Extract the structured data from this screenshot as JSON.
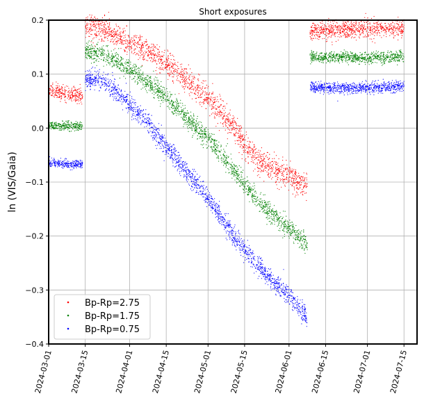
{
  "chart_data": {
    "type": "scatter",
    "title": "Short exposures",
    "xlabel": "",
    "ylabel": "ln (VIS/Gaia)",
    "xlim": [
      "2024-03-01",
      "2024-07-20"
    ],
    "ylim": [
      -0.4,
      0.2
    ],
    "x_ticks": [
      "2024-03-01",
      "2024-03-15",
      "2024-04-01",
      "2024-04-15",
      "2024-05-01",
      "2024-05-15",
      "2024-06-01",
      "2024-06-15",
      "2024-07-01",
      "2024-07-15"
    ],
    "y_ticks": [
      -0.4,
      -0.3,
      -0.2,
      -0.1,
      0.0,
      0.1,
      0.2
    ],
    "y_tick_labels": [
      "−0.4",
      "−0.3",
      "−0.2",
      "−0.1",
      "0.0",
      "0.1",
      "0.2"
    ],
    "grid": true,
    "legend_position": "lower-left",
    "series": [
      {
        "name": "Bp-Rp=2.75",
        "color": "#ff0000",
        "segments": [
          {
            "x": [
              "2024-03-01",
              "2024-03-06",
              "2024-03-10",
              "2024-03-14"
            ],
            "y": [
              0.068,
              0.066,
              0.063,
              0.06
            ],
            "scatter": 0.007
          },
          {
            "x": [
              "2024-03-15",
              "2024-03-18",
              "2024-03-22",
              "2024-03-25",
              "2024-04-01",
              "2024-04-08",
              "2024-04-15",
              "2024-04-22",
              "2024-05-01",
              "2024-05-05",
              "2024-05-10",
              "2024-05-15",
              "2024-05-20",
              "2024-05-25",
              "2024-06-01",
              "2024-06-08"
            ],
            "y": [
              0.19,
              0.187,
              0.183,
              0.175,
              0.158,
              0.14,
              0.118,
              0.092,
              0.055,
              0.032,
              0.008,
              -0.03,
              -0.06,
              -0.075,
              -0.09,
              -0.11
            ],
            "scatter": 0.012
          },
          {
            "x": [
              "2024-06-09",
              "2024-06-20",
              "2024-07-01",
              "2024-07-10",
              "2024-07-15"
            ],
            "y": [
              0.18,
              0.182,
              0.184,
              0.185,
              0.184
            ],
            "scatter": 0.008
          }
        ]
      },
      {
        "name": "Bp-Rp=1.75",
        "color": "#008000",
        "segments": [
          {
            "x": [
              "2024-03-01",
              "2024-03-07",
              "2024-03-14"
            ],
            "y": [
              0.004,
              0.004,
              0.003
            ],
            "scatter": 0.004
          },
          {
            "x": [
              "2024-03-15",
              "2024-03-18",
              "2024-03-22",
              "2024-03-25",
              "2024-04-01",
              "2024-04-08",
              "2024-04-15",
              "2024-04-22",
              "2024-05-01",
              "2024-05-08",
              "2024-05-15",
              "2024-05-22",
              "2024-06-01",
              "2024-06-08"
            ],
            "y": [
              0.143,
              0.14,
              0.137,
              0.13,
              0.11,
              0.085,
              0.055,
              0.022,
              -0.02,
              -0.06,
              -0.105,
              -0.145,
              -0.185,
              -0.215
            ],
            "scatter": 0.009
          },
          {
            "x": [
              "2024-06-09",
              "2024-06-20",
              "2024-07-01",
              "2024-07-15"
            ],
            "y": [
              0.132,
              0.131,
              0.13,
              0.132
            ],
            "scatter": 0.005
          }
        ]
      },
      {
        "name": "Bp-Rp=0.75",
        "color": "#0000ff",
        "segments": [
          {
            "x": [
              "2024-03-01",
              "2024-03-07",
              "2024-03-14"
            ],
            "y": [
              -0.065,
              -0.066,
              -0.067
            ],
            "scatter": 0.004
          },
          {
            "x": [
              "2024-03-15",
              "2024-03-18",
              "2024-03-22",
              "2024-03-25",
              "2024-04-01",
              "2024-04-08",
              "2024-04-15",
              "2024-04-22",
              "2024-05-01",
              "2024-05-08",
              "2024-05-15",
              "2024-05-22",
              "2024-06-01",
              "2024-06-08"
            ],
            "y": [
              0.09,
              0.088,
              0.085,
              0.075,
              0.045,
              0.01,
              -0.035,
              -0.078,
              -0.13,
              -0.18,
              -0.225,
              -0.265,
              -0.31,
              -0.35
            ],
            "scatter": 0.009
          },
          {
            "x": [
              "2024-06-09",
              "2024-06-20",
              "2024-07-01",
              "2024-07-15"
            ],
            "y": [
              0.076,
              0.074,
              0.075,
              0.077
            ],
            "scatter": 0.005
          }
        ]
      }
    ]
  }
}
